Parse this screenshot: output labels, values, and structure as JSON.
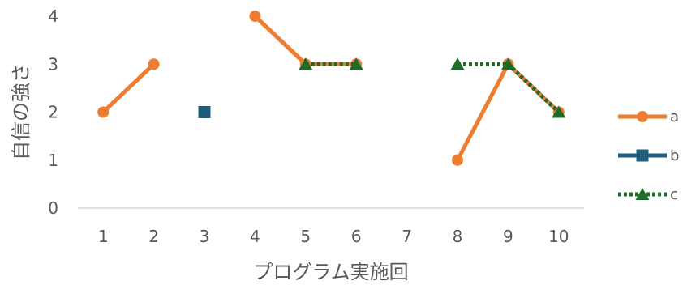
{
  "chart_data": {
    "type": "line",
    "title": "",
    "xlabel": "プログラム実施回",
    "ylabel": "自信の強さ",
    "categories": [
      "1",
      "2",
      "3",
      "4",
      "5",
      "6",
      "7",
      "8",
      "9",
      "10"
    ],
    "ylim": [
      0,
      4
    ],
    "yticks": [
      0,
      1,
      2,
      3,
      4
    ],
    "grid": false,
    "legend": "right",
    "series": [
      {
        "name": "a",
        "color": "#ED7D31",
        "marker": "circle",
        "dash": "solid",
        "values": [
          2,
          3,
          null,
          4,
          3,
          3,
          null,
          1,
          3,
          2
        ]
      },
      {
        "name": "b",
        "color": "#1F5C7A",
        "marker": "square",
        "dash": "solid",
        "values": [
          null,
          null,
          2,
          null,
          null,
          null,
          null,
          null,
          null,
          null
        ]
      },
      {
        "name": "c",
        "color": "#1E6B2A",
        "marker": "triangle",
        "dash": "dotted",
        "values": [
          null,
          null,
          null,
          null,
          3,
          3,
          null,
          3,
          3,
          2
        ]
      }
    ]
  }
}
